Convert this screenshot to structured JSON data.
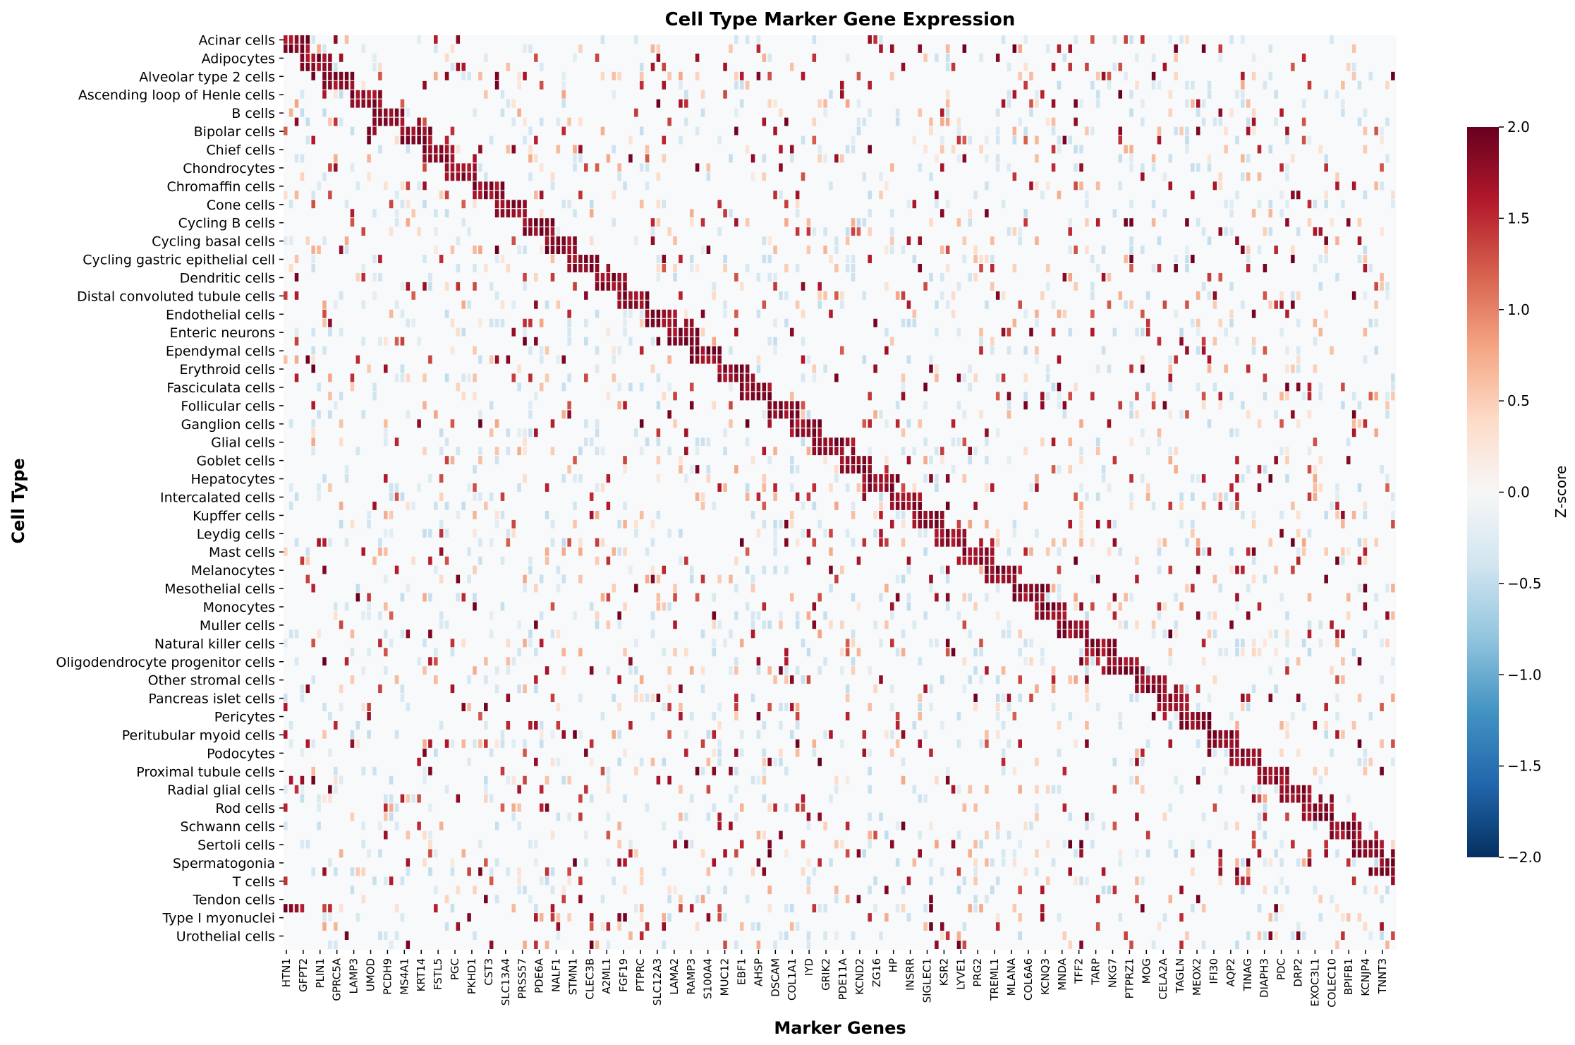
{
  "chart_data": {
    "type": "heatmap",
    "title": "Cell Type Marker Gene Expression",
    "xlabel": "Marker Genes",
    "ylabel": "Cell Type",
    "y_tick_labels": [
      "Acinar cells",
      "Adipocytes",
      "Alveolar type 2 cells",
      "Ascending loop of Henle cells",
      "B cells",
      "Bipolar cells",
      "Chief cells",
      "Chondrocytes",
      "Chromaffin cells",
      "Cone cells",
      "Cycling B cells",
      "Cycling basal cells",
      "Cycling gastric epithelial cell",
      "Dendritic cells",
      "Distal convoluted tubule cells",
      "Endothelial cells",
      "Enteric neurons",
      "Ependymal cells",
      "Erythroid cells",
      "Fasciculata cells",
      "Follicular cells",
      "Ganglion cells",
      "Glial cells",
      "Goblet cells",
      "Hepatocytes",
      "Intercalated cells",
      "Kupffer cells",
      "Leydig cells",
      "Mast cells",
      "Melanocytes",
      "Mesothelial cells",
      "Monocytes",
      "Muller cells",
      "Natural killer cells",
      "Oligodendrocyte progenitor cells",
      "Other stromal cells",
      "Pancreas islet cells",
      "Pericytes",
      "Peritubular myoid cells",
      "Podocytes",
      "Proximal tubule cells",
      "Radial glial cells",
      "Rod cells",
      "Schwann cells",
      "Sertoli cells",
      "Spermatogonia",
      "T cells",
      "Tendon cells",
      "Type I myonuclei",
      "Urothelial cells"
    ],
    "x_tick_labels": [
      "HTN1",
      "GFPT2",
      "PLIN1",
      "GPRC5A",
      "LAMP3",
      "UMOD",
      "PCDH9",
      "MS4A1",
      "KRT14",
      "FSTL5",
      "PGC",
      "PKHD1",
      "CST3",
      "SLC13A4",
      "PRSS57",
      "PDE6A",
      "NALF1",
      "STMN1",
      "CLEC3B",
      "A2ML1",
      "FGF19",
      "PTPRC",
      "SLC12A3",
      "LAMA2",
      "RAMP3",
      "S100A4",
      "MUC12",
      "EBF1",
      "AHSP",
      "DSCAM",
      "COL1A1",
      "IYD",
      "GRIK2",
      "PDE11A",
      "KCND2",
      "ZG16",
      "HP",
      "INSRR",
      "SIGLEC1",
      "KSR2",
      "LYVE1",
      "PRG2",
      "TREML1",
      "MLANA",
      "COL6A6",
      "KCNQ3",
      "MNDA",
      "TFF2",
      "TARP",
      "NKG7",
      "PTPRZ1",
      "MOG",
      "CELA2A",
      "TAGLN",
      "MEOX2",
      "IFI30",
      "AQP2",
      "TINAG",
      "DIAPH3",
      "PDC",
      "DRP2",
      "EXOC3L1",
      "COLEC10",
      "BPIFB1",
      "KCNJP4",
      "TNNT3"
    ],
    "n_rows": 100,
    "n_cols": 200,
    "colorbar": {
      "label": "Z-score",
      "vmin": -2.0,
      "vmax": 2.0,
      "ticks": [
        "2.0",
        "1.5",
        "1.0",
        "0.5",
        "0.0",
        "−0.5",
        "−1.0",
        "−1.5",
        "−2.0"
      ],
      "colormap": "RdBu_r",
      "colors": [
        "#053061",
        "#2166ac",
        "#4393c3",
        "#92c5de",
        "#d1e5f0",
        "#f7f7f7",
        "#fddbc7",
        "#f4a582",
        "#d6604d",
        "#b2182b",
        "#67001f"
      ]
    },
    "pattern": "diagonal block of high z-scores (~+2) per cell type's markers, sparse off-diagonal positives, near-zero background",
    "grid": false
  }
}
